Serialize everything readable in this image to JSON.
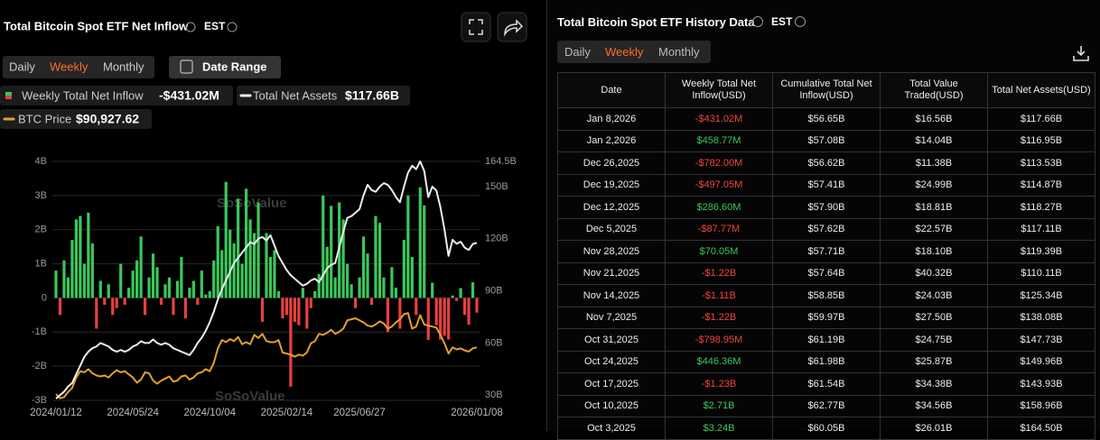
{
  "left_panel": {
    "title": "Total Bitcoin Spot ETF Net Inflow",
    "timezone": "EST",
    "tabs": [
      "Daily",
      "Weekly",
      "Monthly"
    ],
    "active_tab": 1,
    "date_range": "Date Range",
    "watermark": "SoSoValue",
    "legend_values": [
      "-$431.02M",
      "$117.66B",
      "$90,927.62"
    ],
    "chart_data": {
      "type": "bar-line",
      "categories": [
        "2024/01/12",
        null,
        null,
        null,
        null,
        null,
        null,
        null,
        null,
        null,
        null,
        null,
        null,
        null,
        null,
        null,
        null,
        null,
        null,
        "2024/05/24",
        null,
        null,
        null,
        null,
        null,
        null,
        null,
        null,
        null,
        null,
        null,
        null,
        null,
        null,
        null,
        null,
        null,
        null,
        "2024/10/04",
        null,
        null,
        null,
        null,
        null,
        null,
        null,
        null,
        null,
        null,
        null,
        null,
        null,
        null,
        null,
        null,
        null,
        null,
        "2025/02/14",
        null,
        null,
        null,
        null,
        null,
        null,
        null,
        null,
        null,
        null,
        null,
        null,
        null,
        null,
        null,
        null,
        null,
        "2025/06/27",
        null,
        null,
        null,
        null,
        null,
        null,
        null,
        null,
        null,
        null,
        null,
        null,
        null,
        null,
        null,
        null,
        null,
        null,
        null,
        null,
        null,
        null,
        null,
        null,
        null,
        null,
        null,
        null,
        "2026/01/08"
      ],
      "series": [
        {
          "name": "Weekly Total Net Inflow",
          "type": "bar",
          "color": "#3cc65b",
          "negative_color": "#e8403f",
          "values": [
            0.8,
            -0.5,
            1.1,
            0.6,
            1.7,
            2.3,
            2.4,
            1.0,
            2.5,
            1.6,
            -0.9,
            0.5,
            -0.2,
            0.4,
            -0.5,
            -0.3,
            1.0,
            -0.2,
            0.3,
            0.8,
            1.1,
            1.8,
            -0.5,
            0.6,
            1.3,
            0.9,
            -0.2,
            0.4,
            0.6,
            -0.5,
            0.5,
            1.2,
            -0.6,
            0.3,
            0.5,
            -0.2,
            0.8,
            0.1,
            0.2,
            1.1,
            2.1,
            1.4,
            3.4,
            2.0,
            1.6,
            2.9,
            1.0,
            3.2,
            2.3,
            1.9,
            2.8,
            -0.7,
            1.9,
            1.2,
            1.4,
            0.2,
            -0.6,
            -0.5,
            -2.6,
            -0.7,
            -0.8,
            0.3,
            -0.9,
            -0.3,
            0.2,
            0.7,
            3.0,
            1.5,
            2.7,
            0.6,
            2.8,
            2.3,
            1.0,
            0.4,
            -0.3,
            0.6,
            1.8,
            1.3,
            -0.2,
            2.4,
            2.2,
            0.6,
            -1.0,
            0.9,
            0.3,
            -0.9,
            1.7,
            3.0,
            1.2,
            -0.5,
            3.24,
            2.71,
            -1.23,
            0.44636,
            -0.79895,
            -1.22,
            -1.11,
            -1.22,
            0.07005,
            -0.08777,
            0.2866,
            -0.497,
            -0.782,
            0.45877,
            -0.43102
          ]
        },
        {
          "name": "Total Net Assets",
          "type": "line",
          "axis": "y2",
          "color": "#eeeeee",
          "values": [
            28,
            30,
            32,
            35,
            37,
            42,
            47,
            52,
            55,
            57,
            58,
            60,
            59,
            58,
            56,
            55,
            56,
            55,
            56,
            58,
            59,
            61,
            60,
            60,
            62,
            60,
            59,
            60,
            59,
            57,
            56,
            55,
            54,
            53,
            56,
            60,
            63,
            67,
            72,
            78,
            85,
            91,
            96,
            101,
            106,
            109,
            112,
            115,
            118,
            117,
            120,
            121,
            119,
            122,
            116,
            110,
            106,
            102,
            99,
            97,
            95,
            93,
            94,
            96,
            97,
            95,
            99,
            103,
            105,
            106,
            115,
            124,
            132,
            133,
            135,
            137,
            145,
            151,
            148,
            147,
            150,
            152,
            151,
            148,
            144,
            141,
            150,
            158,
            162,
            160,
            164.5,
            158.96,
            143.93,
            149.96,
            147.73,
            138.08,
            125.34,
            110.11,
            119.39,
            117.11,
            118.27,
            114.87,
            113.53,
            116.95,
            117.66
          ]
        },
        {
          "name": "BTC Price",
          "type": "line",
          "axis": "y3",
          "color": "#e0a12e",
          "values": [
            46000,
            42000,
            43000,
            48000,
            52000,
            62000,
            68000,
            67000,
            70000,
            66000,
            64000,
            63000,
            64000,
            62000,
            66000,
            69000,
            67000,
            68000,
            65000,
            62000,
            57000,
            60000,
            67000,
            66000,
            59000,
            56000,
            59000,
            61000,
            63000,
            58000,
            59000,
            63000,
            64000,
            60000,
            62000,
            66000,
            67000,
            70000,
            68000,
            76000,
            90000,
            98000,
            96000,
            99000,
            97000,
            101000,
            94000,
            96000,
            94000,
            103000,
            100000,
            104000,
            97000,
            96000,
            96000,
            98000,
            86000,
            85000,
            84000,
            82000,
            84000,
            83000,
            86000,
            95000,
            97000,
            104000,
            103000,
            105000,
            108000,
            104000,
            106000,
            109000,
            117000,
            118000,
            119000,
            117000,
            115000,
            112000,
            111000,
            113000,
            116000,
            114000,
            109000,
            111000,
            115000,
            118000,
            123000,
            124000,
            109000,
            111000,
            122000,
            113000,
            112000,
            111000,
            110000,
            103000,
            95000,
            85000,
            91000,
            89000,
            90000,
            88000,
            87000,
            90000,
            90927.62
          ]
        }
      ],
      "ylim": [
        -3,
        4
      ],
      "yticks": [
        {
          "value": -3,
          "label": "-3B"
        },
        {
          "value": -2,
          "label": "-2B"
        },
        {
          "value": -1,
          "label": "-1B"
        },
        0,
        {
          "value": 1,
          "label": "1B"
        },
        {
          "value": 2,
          "label": "2B"
        },
        {
          "value": 3,
          "label": "3B"
        },
        {
          "value": 4,
          "label": "4B"
        }
      ],
      "y2lim": [
        27,
        164.5
      ],
      "y2ticks": [
        {
          "value": 30,
          "label": "30B"
        },
        {
          "value": 60,
          "label": "60B"
        },
        {
          "value": 90,
          "label": "90B"
        },
        {
          "value": 120,
          "label": "120B"
        },
        {
          "value": 150,
          "label": "150B"
        },
        {
          "value": 164.5,
          "label": "164.5B"
        }
      ],
      "y3lim": [
        40000,
        270000
      ],
      "grid": true
    }
  },
  "right_panel": {
    "title": "Total Bitcoin Spot ETF History Data",
    "timezone": "EST",
    "tabs": [
      "Daily",
      "Weekly",
      "Monthly"
    ],
    "active_tab": 1,
    "table": {
      "columns": [
        "Date",
        "Weekly Total Net Inflow(USD)",
        "Cumulative Total Net Inflow(USD)",
        "Total Value Traded(USD)",
        "Total Net Assets(USD)"
      ],
      "rows": [
        [
          "Jan 8,2026",
          "-$431.02M",
          "$56.65B",
          "$16.56B",
          "$117.66B"
        ],
        [
          "Jan 2,2026",
          "$458.77M",
          "$57.08B",
          "$14.04B",
          "$116.95B"
        ],
        [
          "Dec 26,2025",
          "-$782.00M",
          "$56.62B",
          "$11.38B",
          "$113.53B"
        ],
        [
          "Dec 19,2025",
          "-$497.05M",
          "$57.41B",
          "$24.99B",
          "$114.87B"
        ],
        [
          "Dec 12,2025",
          "$286.60M",
          "$57.90B",
          "$18.81B",
          "$118.27B"
        ],
        [
          "Dec 5,2025",
          "-$87.77M",
          "$57.62B",
          "$22.57B",
          "$117.11B"
        ],
        [
          "Nov 28,2025",
          "$70.05M",
          "$57.71B",
          "$18.10B",
          "$119.39B"
        ],
        [
          "Nov 21,2025",
          "-$1.22B",
          "$57.64B",
          "$40.32B",
          "$110.11B"
        ],
        [
          "Nov 14,2025",
          "-$1.11B",
          "$58.85B",
          "$24.03B",
          "$125.34B"
        ],
        [
          "Nov 7,2025",
          "-$1.22B",
          "$59.97B",
          "$27.50B",
          "$138.08B"
        ],
        [
          "Oct 31,2025",
          "-$798.95M",
          "$61.19B",
          "$24.75B",
          "$147.73B"
        ],
        [
          "Oct 24,2025",
          "$446.36M",
          "$61.98B",
          "$25.87B",
          "$149.96B"
        ],
        [
          "Oct 17,2025",
          "-$1.23B",
          "$61.54B",
          "$34.38B",
          "$143.93B"
        ],
        [
          "Oct 10,2025",
          "$2.71B",
          "$62.77B",
          "$34.56B",
          "$158.96B"
        ],
        [
          "Oct 3,2025",
          "$3.24B",
          "$60.05B",
          "$26.01B",
          "$164.50B"
        ]
      ]
    }
  }
}
